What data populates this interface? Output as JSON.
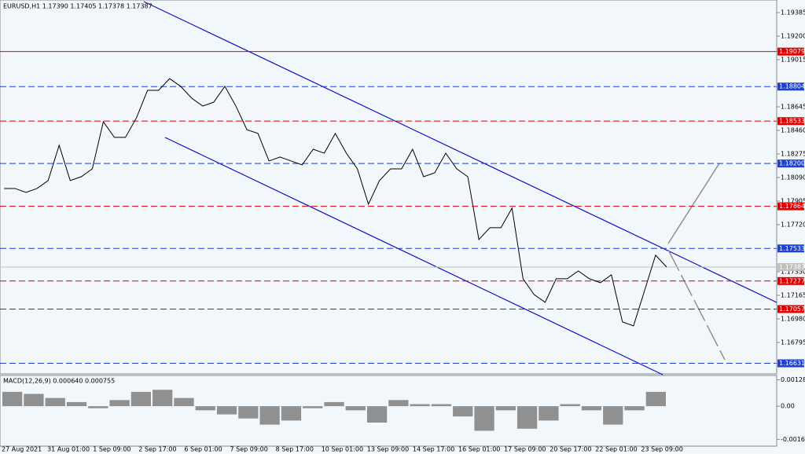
{
  "chart_data": [
    {
      "type": "line",
      "title": "EURUSD,H1  1.17390 1.17405 1.17378 1.17387",
      "values": [
        1.18004,
        1.18004,
        1.17973,
        1.18004,
        1.18066,
        1.18343,
        1.18066,
        1.18096,
        1.18158,
        1.18528,
        1.18405,
        1.18405,
        1.18559,
        1.18775,
        1.18775,
        1.18867,
        1.18806,
        1.18713,
        1.18651,
        1.18682,
        1.18806,
        1.18651,
        1.18466,
        1.18436,
        1.1822,
        1.18251,
        1.1822,
        1.18189,
        1.18312,
        1.18281,
        1.18436,
        1.18281,
        1.18158,
        1.17881,
        1.18066,
        1.18158,
        1.18158,
        1.18312,
        1.18096,
        1.18127,
        1.18281,
        1.18158,
        1.18096,
        1.17603,
        1.17696,
        1.17696,
        1.1785,
        1.17295,
        1.17171,
        1.1711,
        1.17295,
        1.17295,
        1.17356,
        1.17295,
        1.17264,
        1.17326,
        1.16956,
        1.16925,
        1.17202,
        1.1748,
        1.17387
      ],
      "color": "#000000",
      "ylim": [
        1.16548,
        1.19484
      ],
      "yticks": [
        1.19385,
        {
          "value": 1.192,
          "label": "1.19200"
        },
        1.19015,
        1.18645,
        {
          "value": 1.1846,
          "label": "1.18460"
        },
        1.18275,
        {
          "value": 1.1809,
          "label": "1.18090"
        },
        1.17905,
        {
          "value": 1.1772,
          "label": "1.17720"
        },
        {
          "value": 1.1735,
          "label": "1.17350"
        },
        1.17165,
        {
          "value": 1.1698,
          "label": "1.16980"
        },
        1.16795
      ],
      "levels": [
        {
          "value": 1.19079,
          "label": "1.19079",
          "color": "#e00000",
          "dashed": false
        },
        {
          "value": 1.18804,
          "label": "1.18804",
          "color": "#2040d0",
          "dashed": true
        },
        {
          "value": 1.18533,
          "label": "1.18533",
          "color": "#e00000",
          "dashed": true
        },
        {
          "value": 1.182,
          "label": "1.18200",
          "color": "#2040d0",
          "dashed": true
        },
        {
          "value": 1.17864,
          "label": "1.17864",
          "color": "#e00000",
          "dashed": true
        },
        {
          "value": 1.17533,
          "label": "1.17533",
          "color": "#2040d0",
          "dashed": true
        },
        {
          "value": 1.17387,
          "label": "1.17387",
          "color": "#c0c0c0",
          "dashed": false
        },
        {
          "value": 1.17277,
          "label": "1.17277",
          "color": "#e00000",
          "dashed": true
        },
        {
          "value": 1.17057,
          "label": "1.17057",
          "color": "#e00000",
          "dashed": true
        },
        {
          "value": 1.16631,
          "label": "1.16631",
          "color": "#2040d0",
          "dashed": true
        }
      ],
      "date_labels": [
        "27 Aug 2021",
        "31 Aug 01:00",
        "1 Sep 09:00",
        "2 Sep 17:00",
        "6 Sep 01:00",
        "7 Sep 09:00",
        "8 Sep 17:00",
        "10 Sep 01:00",
        "13 Sep 09:00",
        "14 Sep 17:00",
        "16 Sep 01:00",
        "17 Sep 09:00",
        "20 Sep 17:00",
        "22 Sep 01:00",
        "23 Sep 09:00"
      ]
    },
    {
      "type": "bar",
      "title": "MACD(12,26,9) 0.000640 0.000755",
      "values": [
        0.0007,
        0.0006,
        0.0004,
        0.0002,
        -0.0001,
        0.0003,
        0.0007,
        0.0008,
        0.0004,
        -0.0002,
        -0.0004,
        -0.0006,
        -0.0009,
        -0.0007,
        -0.0001,
        0.0002,
        -0.0002,
        -0.0008,
        0.0003,
        0.0001,
        0.0001,
        -0.0005,
        -0.0012,
        -0.0002,
        -0.0011,
        -0.0007,
        0.0001,
        -0.0002,
        -0.0009,
        -0.0002,
        0.0007
      ],
      "color": "#909090",
      "ylim": [
        -0.00195,
        0.0015
      ],
      "yticks": [
        0.001285,
        {
          "value": 0,
          "label": "0.00"
        },
        -0.001618
      ]
    }
  ]
}
